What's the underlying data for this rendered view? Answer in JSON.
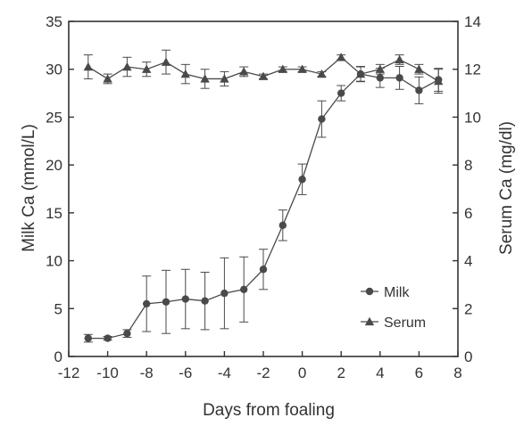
{
  "chart_data": {
    "type": "line",
    "xlabel": "Days from foaling",
    "ylabel_left": "Milk Ca (mmol/L)",
    "ylabel_right": "Serum Ca (mg/dl)",
    "xlim": [
      -12,
      8
    ],
    "ylim_left": [
      0,
      35
    ],
    "ylim_right": [
      0,
      14
    ],
    "x_ticks": [
      -12,
      -10,
      -8,
      -6,
      -4,
      -2,
      0,
      2,
      4,
      6,
      8
    ],
    "y_ticks_left": [
      0,
      5,
      10,
      15,
      20,
      25,
      30,
      35
    ],
    "y_ticks_right": [
      0,
      2,
      4,
      6,
      8,
      10,
      12,
      14
    ],
    "grid": false,
    "legend_position": "bottom-right",
    "series": [
      {
        "name": "Milk",
        "axis": "left",
        "marker": "circle",
        "x": [
          -11,
          -10,
          -9,
          -8,
          -7,
          -6,
          -5,
          -4,
          -3,
          -2,
          -1,
          0,
          1,
          2,
          3,
          4,
          5,
          6,
          7
        ],
        "y": [
          1.9,
          1.9,
          2.4,
          5.5,
          5.7,
          6.0,
          5.8,
          6.6,
          7.0,
          9.1,
          13.7,
          18.5,
          24.8,
          27.5,
          29.5,
          29.1,
          29.1,
          27.8,
          28.9
        ],
        "error": [
          0.4,
          0.2,
          0.4,
          2.9,
          3.3,
          3.1,
          3.0,
          3.7,
          3.4,
          2.1,
          1.6,
          1.6,
          1.9,
          0.8,
          0.8,
          1.0,
          1.2,
          1.4,
          1.2
        ]
      },
      {
        "name": "Serum",
        "axis": "right",
        "marker": "triangle",
        "x": [
          -11,
          -10,
          -9,
          -8,
          -7,
          -6,
          -5,
          -4,
          -3,
          -2,
          -1,
          0,
          1,
          2,
          3,
          4,
          5,
          6,
          7
        ],
        "y": [
          12.1,
          11.6,
          12.1,
          12.0,
          12.3,
          11.8,
          11.6,
          11.6,
          11.9,
          11.7,
          12.0,
          12.0,
          11.8,
          12.5,
          11.8,
          12.0,
          12.4,
          12.0,
          11.5
        ],
        "error": [
          0.5,
          0.2,
          0.4,
          0.3,
          0.5,
          0.4,
          0.4,
          0.3,
          0.2,
          0.1,
          0.1,
          0.1,
          0.1,
          0.1,
          0.3,
          0.2,
          0.2,
          0.2,
          0.5
        ]
      }
    ],
    "colors": {
      "axis": "#333333",
      "milk": "#4a4a4a",
      "serum": "#4a4a4a"
    }
  }
}
